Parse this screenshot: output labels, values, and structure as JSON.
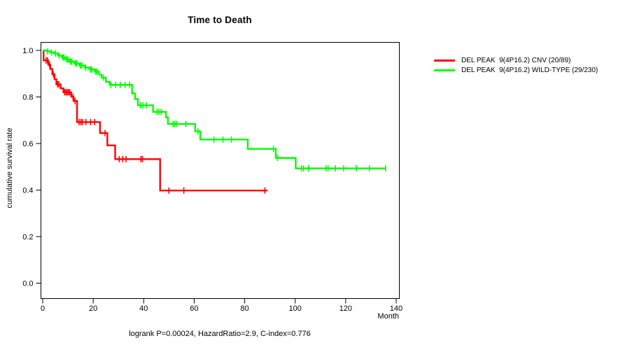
{
  "figure": {
    "title": "Time to Death",
    "x_axis_label": "Month",
    "y_axis_label": "cumulative survival rate",
    "annotation": "logrank P=0.00024, HazardRatio=2.9, C-index=0.776"
  },
  "legend": {
    "items": [
      {
        "label": "DEL PEAK  9(4P16.2) CNV (20/89)",
        "color": "#ff0000"
      },
      {
        "label": "DEL PEAK  9(4P16.2) WILD-TYPE (29/230)",
        "color": "#00ff00"
      }
    ]
  },
  "chart_data": {
    "type": "line",
    "subtype": "kaplan-meier-step",
    "title": "Time to Death",
    "xlabel": "Month",
    "ylabel": "cumulative survival rate",
    "xlim": [
      0,
      140
    ],
    "ylim": [
      0.0,
      1.0
    ],
    "x_ticks": [
      "0",
      "20",
      "40",
      "60",
      "80",
      "100",
      "120",
      "140"
    ],
    "y_ticks": [
      "0.0",
      "0.2",
      "0.4",
      "0.6",
      "0.8",
      "1.0"
    ],
    "grid": false,
    "legend_position": "right-outside",
    "annotation": "logrank P=0.00024, HazardRatio=2.9, C-index=0.776",
    "axis_color": "#000000",
    "series": [
      {
        "name": "DEL PEAK  9(4P16.2) CNV (20/89)",
        "color": "#ff0000",
        "end_x": 89.1,
        "steps": [
          [
            0,
            1.0
          ],
          [
            0.35,
            0.957
          ],
          [
            2.2,
            0.938
          ],
          [
            3.0,
            0.92
          ],
          [
            3.8,
            0.898
          ],
          [
            4.7,
            0.876
          ],
          [
            5.4,
            0.854
          ],
          [
            7.1,
            0.837
          ],
          [
            8.2,
            0.82
          ],
          [
            11.3,
            0.801
          ],
          [
            12.2,
            0.783
          ],
          [
            13.6,
            0.692
          ],
          [
            22.7,
            0.645
          ],
          [
            25.6,
            0.592
          ],
          [
            28.7,
            0.533
          ],
          [
            46.5,
            0.398
          ]
        ],
        "censor_marks": [
          [
            1.3,
            0.957
          ],
          [
            1.9,
            0.957
          ],
          [
            2.7,
            0.938
          ],
          [
            4.2,
            0.898
          ],
          [
            5.9,
            0.854
          ],
          [
            6.4,
            0.854
          ],
          [
            8.7,
            0.82
          ],
          [
            9.2,
            0.82
          ],
          [
            9.7,
            0.82
          ],
          [
            10.2,
            0.82
          ],
          [
            10.7,
            0.82
          ],
          [
            12.0,
            0.801
          ],
          [
            12.8,
            0.783
          ],
          [
            14.4,
            0.692
          ],
          [
            15.1,
            0.692
          ],
          [
            15.7,
            0.692
          ],
          [
            17.1,
            0.692
          ],
          [
            19.0,
            0.692
          ],
          [
            20.6,
            0.692
          ],
          [
            24.7,
            0.645
          ],
          [
            30.3,
            0.533
          ],
          [
            31.7,
            0.533
          ],
          [
            33.0,
            0.533
          ],
          [
            38.9,
            0.533
          ],
          [
            39.5,
            0.533
          ],
          [
            50.0,
            0.398
          ],
          [
            55.9,
            0.398
          ],
          [
            88.0,
            0.398
          ]
        ]
      },
      {
        "name": "DEL PEAK  9(4P16.2) WILD-TYPE (29/230)",
        "color": "#00ff00",
        "end_x": 135.8,
        "steps": [
          [
            0,
            1.0
          ],
          [
            1.5,
            0.996
          ],
          [
            3.0,
            0.991
          ],
          [
            4.5,
            0.987
          ],
          [
            6.0,
            0.978
          ],
          [
            7.5,
            0.97
          ],
          [
            9.0,
            0.961
          ],
          [
            10.5,
            0.952
          ],
          [
            12.5,
            0.944
          ],
          [
            14.5,
            0.935
          ],
          [
            16.5,
            0.926
          ],
          [
            18.5,
            0.918
          ],
          [
            20.5,
            0.909
          ],
          [
            22.3,
            0.896
          ],
          [
            23.3,
            0.883
          ],
          [
            25.0,
            0.865
          ],
          [
            26.5,
            0.852
          ],
          [
            35.4,
            0.815
          ],
          [
            36.6,
            0.791
          ],
          [
            37.7,
            0.764
          ],
          [
            43.7,
            0.736
          ],
          [
            48.8,
            0.712
          ],
          [
            49.6,
            0.684
          ],
          [
            60.4,
            0.652
          ],
          [
            62.4,
            0.617
          ],
          [
            81.2,
            0.577
          ],
          [
            92.3,
            0.538
          ],
          [
            100.2,
            0.493
          ]
        ],
        "censor_marks": [
          [
            2.0,
            0.996
          ],
          [
            3.5,
            0.991
          ],
          [
            5.0,
            0.987
          ],
          [
            6.5,
            0.978
          ],
          [
            8.0,
            0.97
          ],
          [
            8.4,
            0.97
          ],
          [
            9.5,
            0.961
          ],
          [
            10.0,
            0.961
          ],
          [
            11.0,
            0.952
          ],
          [
            11.5,
            0.952
          ],
          [
            13.0,
            0.944
          ],
          [
            13.5,
            0.944
          ],
          [
            15.0,
            0.935
          ],
          [
            15.5,
            0.935
          ],
          [
            17.0,
            0.926
          ],
          [
            19.0,
            0.918
          ],
          [
            19.5,
            0.918
          ],
          [
            21.0,
            0.909
          ],
          [
            21.5,
            0.909
          ],
          [
            24.0,
            0.883
          ],
          [
            27.0,
            0.852
          ],
          [
            28.9,
            0.852
          ],
          [
            30.7,
            0.852
          ],
          [
            32.6,
            0.852
          ],
          [
            34.4,
            0.852
          ],
          [
            38.8,
            0.764
          ],
          [
            39.7,
            0.764
          ],
          [
            41.0,
            0.764
          ],
          [
            45.3,
            0.736
          ],
          [
            46.0,
            0.736
          ],
          [
            46.9,
            0.736
          ],
          [
            51.6,
            0.684
          ],
          [
            52.2,
            0.684
          ],
          [
            52.9,
            0.684
          ],
          [
            56.7,
            0.684
          ],
          [
            61.5,
            0.652
          ],
          [
            67.8,
            0.617
          ],
          [
            71.4,
            0.617
          ],
          [
            74.7,
            0.617
          ],
          [
            91.4,
            0.577
          ],
          [
            93.0,
            0.538
          ],
          [
            102.5,
            0.493
          ],
          [
            103.3,
            0.493
          ],
          [
            105.3,
            0.493
          ],
          [
            112.2,
            0.493
          ],
          [
            113.0,
            0.493
          ],
          [
            115.9,
            0.493
          ],
          [
            119.2,
            0.493
          ],
          [
            124.2,
            0.493
          ],
          [
            129.4,
            0.493
          ],
          [
            135.8,
            0.493
          ]
        ]
      }
    ]
  }
}
